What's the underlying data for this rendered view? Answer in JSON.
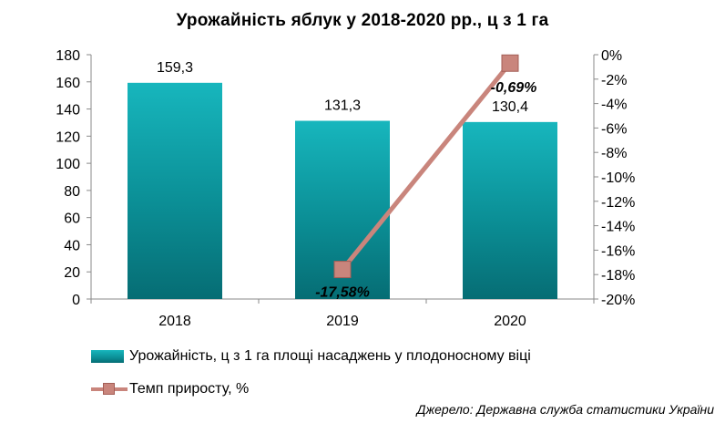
{
  "title": "Урожайність  яблук у 2018-2020 рр., ц з 1 га",
  "source": "Джерело: Державна служба статистики України",
  "colors": {
    "bar": "#0b8f96",
    "bar_light": "#17b6bd",
    "line": "#c9857c",
    "marker_border": "#a45e56"
  },
  "chart_data": {
    "type": "bar",
    "title": "Урожайність  яблук у 2018-2020 рр., ц з 1 га",
    "categories": [
      "2018",
      "2019",
      "2020"
    ],
    "series": [
      {
        "name": "Урожайність, ц з 1 га площі  насаджень у плодоносному віці",
        "type": "bar",
        "axis": "left",
        "values": [
          159.3,
          131.3,
          130.4
        ],
        "labels": [
          "159,3",
          "131,3",
          "130,4"
        ]
      },
      {
        "name": "Темп приросту, %",
        "type": "line",
        "axis": "right",
        "points": [
          {
            "x": "2019",
            "y": -17.58
          },
          {
            "x": "2020",
            "y": -0.69
          }
        ],
        "labels": [
          "-17,58%",
          "-0,69%"
        ]
      }
    ],
    "y_left": {
      "range": [
        0,
        180
      ],
      "ticks": [
        "0",
        "20",
        "40",
        "60",
        "80",
        "100",
        "120",
        "140",
        "160",
        "180"
      ]
    },
    "y_right": {
      "range": [
        -20,
        0
      ],
      "ticks": [
        "-20%",
        "-18%",
        "-16%",
        "-14%",
        "-12%",
        "-10%",
        "-8%",
        "-6%",
        "-4%",
        "-2%",
        "0%"
      ]
    },
    "grid": false,
    "legend_position": "bottom-left"
  }
}
